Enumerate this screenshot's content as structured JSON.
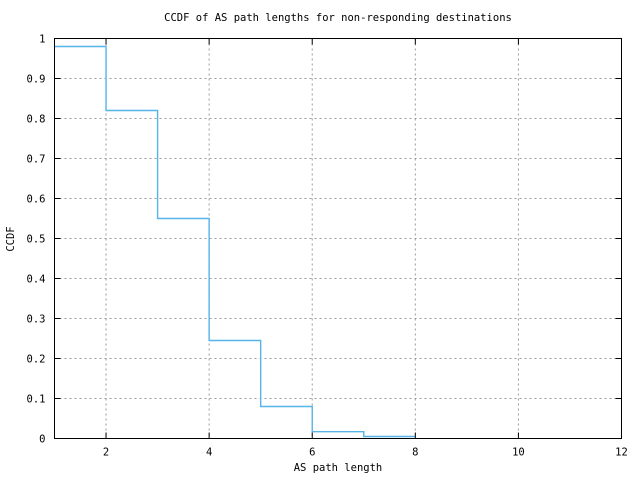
{
  "figure": {
    "title": "CCDF of AS path lengths for non-responding destinations",
    "xlabel": "AS path length",
    "ylabel": "CCDF"
  },
  "colors": {
    "background": "#ffffff",
    "axis": "#000000",
    "grid": "#9a9a9a",
    "text": "#000000",
    "line": "#56b4e9"
  },
  "chart_data": {
    "type": "line",
    "subtype": "ccdf-step",
    "title": "CCDF of AS path lengths for non-responding destinations",
    "xlabel": "AS path length",
    "ylabel": "CCDF",
    "xlim": [
      1,
      12
    ],
    "ylim": [
      0,
      1
    ],
    "x_ticks": [
      2,
      4,
      6,
      8,
      10,
      12
    ],
    "x_tick_labels": [
      "2",
      "4",
      "6",
      "8",
      "10",
      "12"
    ],
    "y_ticks": [
      0,
      0.1,
      0.2,
      0.3,
      0.4,
      0.5,
      0.6,
      0.7,
      0.8,
      0.9,
      1
    ],
    "y_tick_labels": [
      "0",
      "0.1",
      "0.2",
      "0.3",
      "0.4",
      "0.5",
      "0.6",
      "0.7",
      "0.8",
      "0.9",
      "1"
    ],
    "grid": true,
    "legend": "none",
    "line_color": "#56b4e9",
    "series": [
      {
        "name": "CCDF",
        "step_x": [
          1,
          2,
          3,
          4,
          5,
          6,
          7,
          8
        ],
        "step_y": [
          0.98,
          0.82,
          0.55,
          0.245,
          0.08,
          0.017,
          0.005
        ]
      }
    ]
  }
}
